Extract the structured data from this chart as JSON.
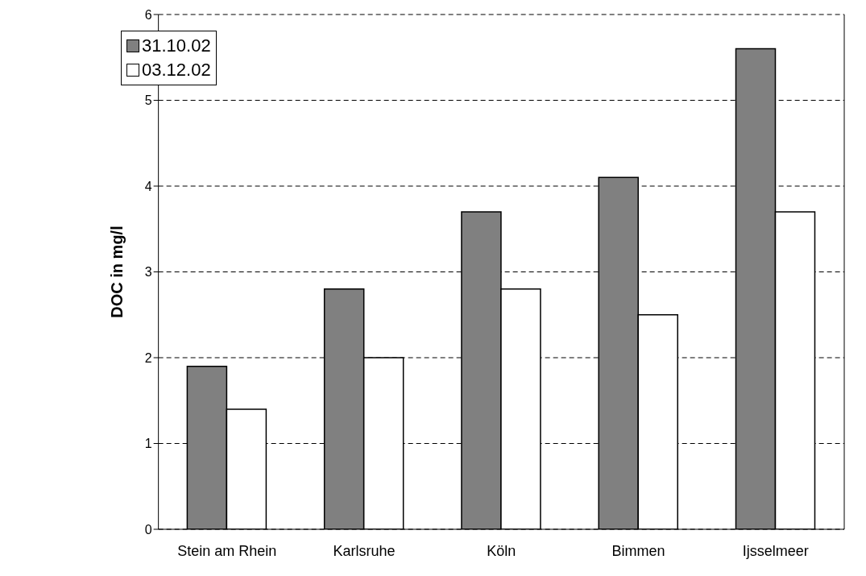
{
  "chart_data": {
    "type": "bar",
    "ylabel": "DOC in mg/l",
    "categories": [
      "Stein am Rhein",
      "Karlsruhe",
      "Köln",
      "Bimmen",
      "Ijsselmeer"
    ],
    "series": [
      {
        "name": "31.10.02",
        "color": "#808080",
        "values": [
          1.9,
          2.8,
          3.7,
          4.1,
          5.6
        ]
      },
      {
        "name": "03.12.02",
        "color": "#ffffff",
        "values": [
          1.4,
          2.0,
          2.8,
          2.5,
          3.7
        ]
      }
    ],
    "ylim": [
      0,
      6
    ],
    "yticks": [
      0,
      1,
      2,
      3,
      4,
      5,
      6
    ],
    "grid": "y",
    "legend": "top left"
  }
}
